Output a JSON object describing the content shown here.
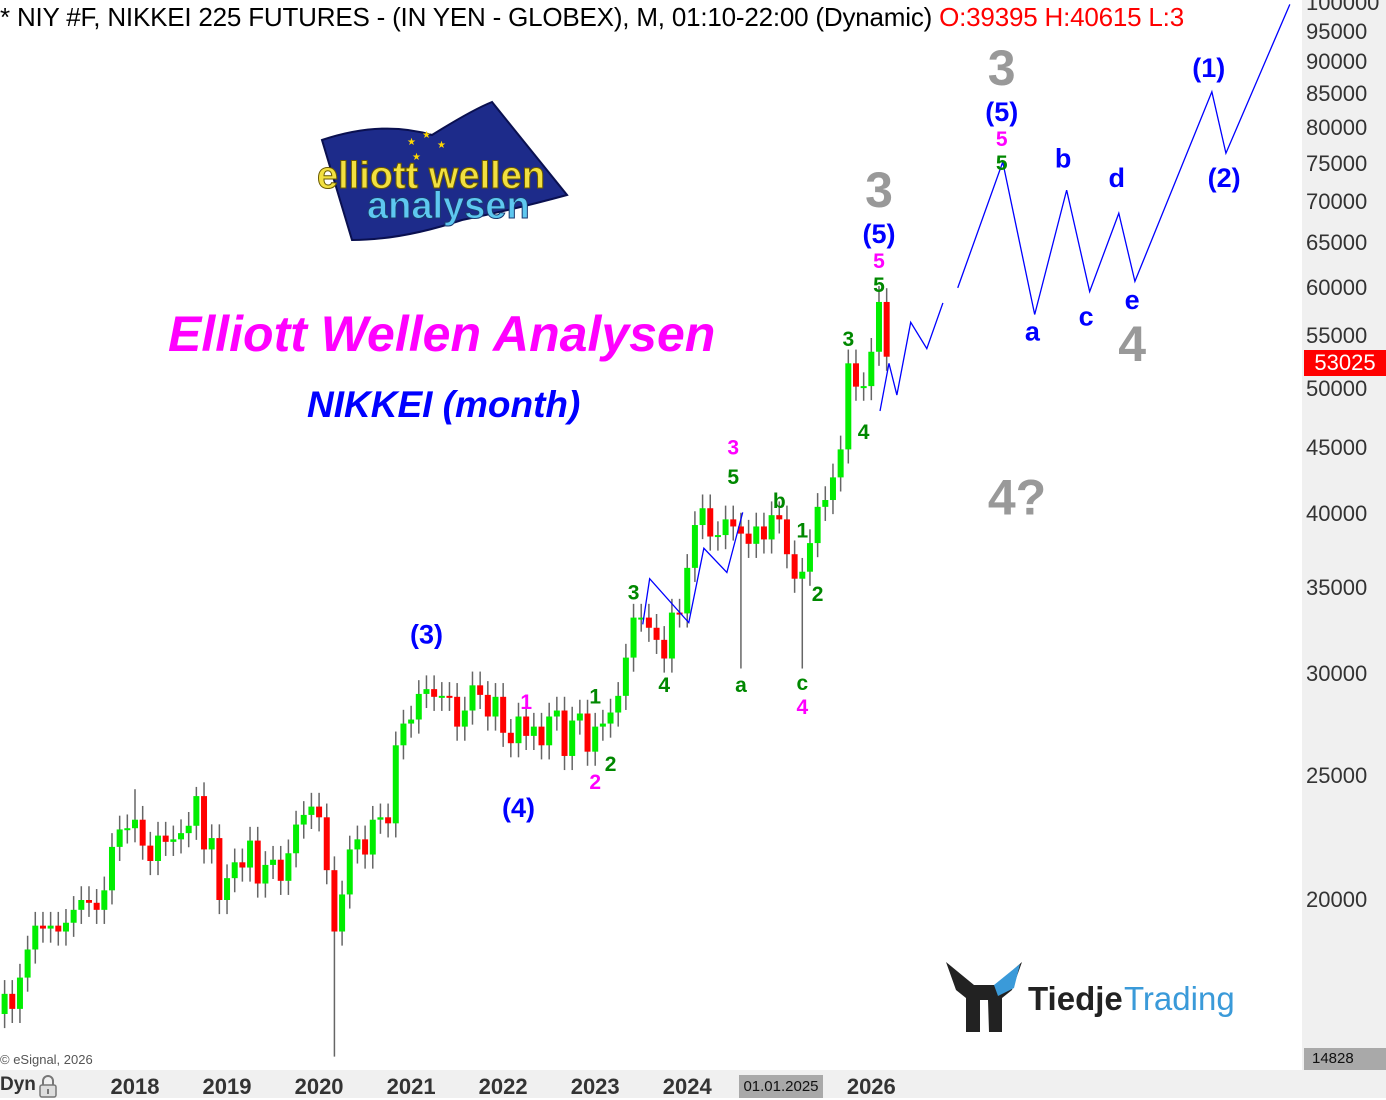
{
  "header": {
    "symbol_text": "* NIY #F, NIKKEI 225 FUTURES - (IN YEN - GLOBEX), M, 01:10-22:00 (Dynamic)",
    "ohlc_text": "O:39395 H:40615 L:3"
  },
  "titles": {
    "main": "Elliott Wellen Analysen",
    "sub": "NIKKEI (month)"
  },
  "logos": {
    "elliott": "elliott wellen analysen",
    "tiedje_part1": "Tiedje",
    "tiedje_part2": "Trading"
  },
  "footer": {
    "copyright": "© eSignal, 2026",
    "mode": "Dyn",
    "cursor_date": "01.01.2025",
    "low_value": "14828"
  },
  "current_price": "53025",
  "colors": {
    "up": "#00ee00",
    "down": "#ff0000",
    "wick": "#666666",
    "wave_line": "#0000ff",
    "blue_label": "#0000ff",
    "green_label": "#008800",
    "magenta_label": "#ff00ff",
    "gray_label": "#999999"
  },
  "chart_data": {
    "type": "candlestick",
    "period": "monthly",
    "y_scale": "log",
    "ylim": [
      14828,
      100000
    ],
    "grid": false,
    "y_ticks": [
      "100000",
      "95000",
      "90000",
      "85000",
      "80000",
      "75000",
      "70000",
      "65000",
      "60000",
      "55000",
      "50000",
      "45000",
      "40000",
      "35000",
      "30000",
      "25000",
      "20000"
    ],
    "x_ticks": [
      "2018",
      "2019",
      "2020",
      "2021",
      "2022",
      "2023",
      "2024",
      "2026"
    ],
    "start_month": "2016-08",
    "first_open": 16300,
    "close": [
      16900,
      16450,
      17400,
      18300,
      19100,
      19000,
      19100,
      18900,
      19200,
      19650,
      20000,
      19900,
      19650,
      20350,
      22000,
      22700,
      22750,
      23100,
      22050,
      21450,
      22450,
      22200,
      22300,
      22550,
      22850,
      24100,
      21900,
      22350,
      20000,
      20800,
      21400,
      21200,
      22250,
      20600,
      21300,
      21500,
      20700,
      21750,
      22900,
      23300,
      23650,
      23200,
      21100,
      18900,
      20200,
      21900,
      22300,
      21700,
      23100,
      23200,
      22950,
      26400,
      27450,
      27650,
      28950,
      29200,
      28800,
      28850,
      28800,
      27300,
      28100,
      29400,
      28900,
      27800,
      28800,
      27000,
      26500,
      27800,
      26850,
      27300,
      26400,
      27800,
      28100,
      25900,
      27600,
      27950,
      26100,
      27300,
      27450,
      28000,
      28850,
      30900,
      33200,
      33200,
      32600,
      31900,
      30850,
      33500,
      33450,
      36300,
      39200,
      40400,
      38400,
      38500,
      39600,
      39100,
      38600,
      37900,
      39100,
      38200,
      39900,
      39600,
      37200,
      35600,
      36050,
      37950,
      40500,
      41000,
      42700,
      44900,
      52400,
      50250,
      50300,
      53500,
      58500,
      53025
    ],
    "notable_wicks": {
      "2020-03": {
        "low": 15100
      },
      "2024-08": {
        "low": 30300
      },
      "2025-04": {
        "low": 30300
      },
      "2026-02": {
        "high": 60200
      },
      "2018-01": {
        "high": 24400
      },
      "2018-09": {
        "high": 24500
      }
    },
    "wave_paths": [
      [
        [
          "2023-07-07",
          32800
        ],
        [
          "2023-08-04",
          35600
        ],
        [
          "2024-01-07",
          32900
        ],
        [
          "2024-03-06",
          37600
        ],
        [
          "2024-06-06",
          36000
        ],
        [
          "2024-08-08",
          40100
        ]
      ],
      [
        [
          "2026-02-05",
          48100
        ],
        [
          "2026-03-10",
          52400
        ],
        [
          "2026-04-11",
          49500
        ],
        [
          "2026-06-05",
          56400
        ],
        [
          "2026-08-08",
          53800
        ],
        [
          "2026-10-11",
          58400
        ]
      ],
      [
        [
          "2026-12-09",
          60000
        ],
        [
          "2027-06-05",
          75200
        ],
        [
          "2027-10-10",
          57200
        ],
        [
          "2028-02-15",
          71500
        ],
        [
          "2028-05-15",
          59600
        ],
        [
          "2028-09-09",
          68600
        ],
        [
          "2028-11-12",
          60700
        ],
        [
          "2029-09-13",
          85300
        ],
        [
          "2029-11-08",
          76400
        ],
        [
          "2030-07-18",
          99800
        ]
      ]
    ],
    "annotations": [
      {
        "text": "3",
        "style": "gray-big",
        "date": "2027-06",
        "price": 89000
      },
      {
        "text": "(5)",
        "style": "blue",
        "date": "2027-06",
        "price": 84000
      },
      {
        "text": "5",
        "style": "magenta",
        "date": "2027-06",
        "price": 80100
      },
      {
        "text": "5",
        "style": "green",
        "date": "2027-06",
        "price": 77000
      },
      {
        "text": "3",
        "style": "gray-big",
        "date": "2026-02",
        "price": 71500
      },
      {
        "text": "(5)",
        "style": "blue",
        "date": "2026-02",
        "price": 67000
      },
      {
        "text": "5",
        "style": "magenta",
        "date": "2026-02",
        "price": 64300
      },
      {
        "text": "5",
        "style": "green",
        "date": "2026-02",
        "price": 62000
      },
      {
        "text": "b",
        "style": "blue",
        "date": "2028-02",
        "price": 75700
      },
      {
        "text": "d",
        "style": "blue",
        "date": "2028-09",
        "price": 73100
      },
      {
        "text": "a",
        "style": "blue",
        "date": "2027-10",
        "price": 55500
      },
      {
        "text": "c",
        "style": "blue",
        "date": "2028-05",
        "price": 57000
      },
      {
        "text": "e",
        "style": "blue",
        "date": "2028-11",
        "price": 58700
      },
      {
        "text": "4",
        "style": "gray-big",
        "date": "2028-11",
        "price": 55100
      },
      {
        "text": "(1)",
        "style": "blue",
        "date": "2029-09",
        "price": 89000
      },
      {
        "text": "(2)",
        "style": "blue",
        "date": "2029-11",
        "price": 73100
      },
      {
        "text": "4?",
        "style": "gray-big",
        "date": "2027-08",
        "price": 41200
      },
      {
        "text": "3",
        "style": "green",
        "date": "2025-10",
        "price": 54700
      },
      {
        "text": "4",
        "style": "green",
        "date": "2025-12",
        "price": 46300
      },
      {
        "text": "3",
        "style": "magenta",
        "date": "2024-07",
        "price": 45000
      },
      {
        "text": "5",
        "style": "green",
        "date": "2024-07",
        "price": 42700
      },
      {
        "text": "b",
        "style": "green",
        "date": "2025-01",
        "price": 40900
      },
      {
        "text": "1",
        "style": "green",
        "date": "2025-04",
        "price": 38800
      },
      {
        "text": "2",
        "style": "green",
        "date": "2025-06",
        "price": 34600
      },
      {
        "text": "a",
        "style": "green",
        "date": "2024-08",
        "price": 29400
      },
      {
        "text": "c",
        "style": "green",
        "date": "2025-04",
        "price": 29500
      },
      {
        "text": "4",
        "style": "magenta",
        "date": "2025-04",
        "price": 28400
      },
      {
        "text": "3",
        "style": "green",
        "date": "2023-06",
        "price": 34700
      },
      {
        "text": "4",
        "style": "green",
        "date": "2023-10",
        "price": 29400
      },
      {
        "text": "(3)",
        "style": "blue",
        "date": "2021-03",
        "price": 32200
      },
      {
        "text": "(4)",
        "style": "blue",
        "date": "2022-03",
        "price": 23600
      },
      {
        "text": "1",
        "style": "magenta",
        "date": "2022-04",
        "price": 28500
      },
      {
        "text": "1",
        "style": "green",
        "date": "2023-01",
        "price": 28800
      },
      {
        "text": "2",
        "style": "green",
        "date": "2023-03",
        "price": 25500
      },
      {
        "text": "2",
        "style": "magenta",
        "date": "2023-01",
        "price": 24700
      }
    ]
  }
}
